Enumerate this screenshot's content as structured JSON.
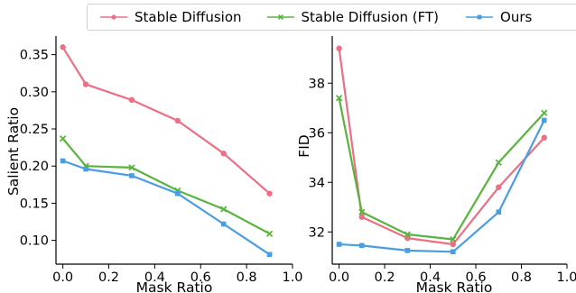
{
  "chart_data": [
    {
      "type": "line",
      "title": "",
      "xlabel": "Mask Ratio",
      "ylabel": "Salient Ratio",
      "xlim": [
        -0.03,
        1.0
      ],
      "ylim": [
        0.068,
        0.375
      ],
      "xticks": [
        0.0,
        0.2,
        0.4,
        0.6,
        0.8,
        1.0
      ],
      "xtick_labels": [
        "0.0",
        "0.2",
        "0.4",
        "0.6",
        "0.8",
        "1.0"
      ],
      "yticks": [
        0.1,
        0.15,
        0.2,
        0.25,
        0.3,
        0.35
      ],
      "ytick_labels": [
        "0.10",
        "0.15",
        "0.20",
        "0.25",
        "0.30",
        "0.35"
      ],
      "grid": false,
      "x": [
        0.0,
        0.1,
        0.3,
        0.5,
        0.7,
        0.9
      ],
      "series": [
        {
          "name": "Stable Diffusion",
          "marker": "circle",
          "values": [
            0.36,
            0.31,
            0.289,
            0.261,
            0.217,
            0.163
          ]
        },
        {
          "name": "Stable Diffusion (FT)",
          "marker": "x",
          "values": [
            0.237,
            0.2,
            0.198,
            0.167,
            0.142,
            0.109
          ]
        },
        {
          "name": "Ours",
          "marker": "square",
          "values": [
            0.207,
            0.196,
            0.187,
            0.163,
            0.122,
            0.081
          ]
        }
      ]
    },
    {
      "type": "line",
      "title": "",
      "xlabel": "Mask Ratio",
      "ylabel": "FID",
      "xlim": [
        -0.03,
        1.0
      ],
      "ylim": [
        30.7,
        39.9
      ],
      "xticks": [
        0.0,
        0.2,
        0.4,
        0.6,
        0.8,
        1.0
      ],
      "xtick_labels": [
        "0.0",
        "0.2",
        "0.4",
        "0.6",
        "0.8",
        "1.0"
      ],
      "yticks": [
        32,
        34,
        36,
        38
      ],
      "ytick_labels": [
        "32",
        "34",
        "36",
        "38"
      ],
      "grid": false,
      "x": [
        0.0,
        0.1,
        0.3,
        0.5,
        0.7,
        0.9
      ],
      "series": [
        {
          "name": "Stable Diffusion",
          "marker": "circle",
          "values": [
            39.4,
            32.6,
            31.75,
            31.5,
            33.8,
            35.8
          ]
        },
        {
          "name": "Stable Diffusion (FT)",
          "marker": "x",
          "values": [
            37.4,
            32.8,
            31.9,
            31.7,
            34.8,
            36.8
          ]
        },
        {
          "name": "Ours",
          "marker": "square",
          "values": [
            31.5,
            31.45,
            31.25,
            31.2,
            32.8,
            36.5
          ]
        }
      ]
    }
  ],
  "legend": {
    "placement": "top",
    "items": [
      {
        "label": "Stable Diffusion",
        "color": "#eb6f85",
        "marker": "circle"
      },
      {
        "label": "Stable Diffusion (FT)",
        "color": "#59b33e",
        "marker": "x"
      },
      {
        "label": "Ours",
        "color": "#4a9ee0",
        "marker": "square"
      }
    ]
  }
}
